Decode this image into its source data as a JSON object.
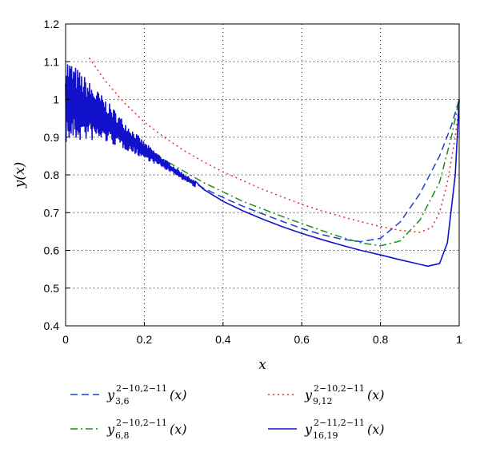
{
  "chart_data": {
    "type": "line",
    "xlabel": "x",
    "ylabel": "y(x)",
    "xlim": [
      0,
      1
    ],
    "ylim": [
      0.4,
      1.2
    ],
    "grid": true,
    "xticks": [
      "0",
      "0.2",
      "0.4",
      "0.6",
      "0.8",
      "1"
    ],
    "yticks": [
      "0.4",
      "0.5",
      "0.6",
      "0.7",
      "0.8",
      "0.9",
      "1",
      "1.1",
      "1.2"
    ],
    "legend_position": "below",
    "series": [
      {
        "name": "y_{3,6}^{2^{-10},2^{-11}}(x)",
        "legend": {
          "base": "y",
          "sub": "3,6",
          "sup": "2−10,2−11",
          "arg": "(x)"
        },
        "color": "#1f3fcc",
        "style": "dashed",
        "x": [
          0,
          0.05,
          0.1,
          0.15,
          0.2,
          0.25,
          0.3,
          0.35,
          0.4,
          0.45,
          0.5,
          0.55,
          0.6,
          0.65,
          0.7,
          0.75,
          0.8,
          0.85,
          0.9,
          0.95,
          0.98,
          1.0
        ],
        "y": [
          0.99,
          0.975,
          0.945,
          0.905,
          0.865,
          0.83,
          0.795,
          0.765,
          0.74,
          0.717,
          0.697,
          0.677,
          0.658,
          0.642,
          0.63,
          0.623,
          0.632,
          0.675,
          0.75,
          0.85,
          0.93,
          1.0
        ]
      },
      {
        "name": "y_{6,8}^{2^{-10},2^{-11}}(x)",
        "legend": {
          "base": "y",
          "sub": "6,8",
          "sup": "2−10,2−11",
          "arg": "(x)"
        },
        "color": "#1a8c1a",
        "style": "dashdot",
        "x": [
          0,
          0.05,
          0.1,
          0.15,
          0.2,
          0.25,
          0.3,
          0.35,
          0.4,
          0.45,
          0.5,
          0.55,
          0.6,
          0.65,
          0.7,
          0.75,
          0.8,
          0.85,
          0.9,
          0.95,
          0.98,
          1.0
        ],
        "y": [
          1.0,
          0.985,
          0.955,
          0.915,
          0.875,
          0.84,
          0.81,
          0.78,
          0.755,
          0.73,
          0.71,
          0.69,
          0.671,
          0.653,
          0.635,
          0.62,
          0.612,
          0.625,
          0.68,
          0.78,
          0.9,
          1.0
        ]
      },
      {
        "name": "y_{9,12}^{2^{-10},2^{-11}}(x)",
        "legend": {
          "base": "y",
          "sub": "9,12",
          "sup": "2−10,2−11",
          "arg": "(x)"
        },
        "color": "#e03030",
        "style": "dotted",
        "x": [
          0.06,
          0.1,
          0.15,
          0.2,
          0.25,
          0.3,
          0.35,
          0.4,
          0.45,
          0.5,
          0.55,
          0.6,
          0.65,
          0.7,
          0.75,
          0.8,
          0.85,
          0.9,
          0.93,
          0.95,
          0.97,
          0.99,
          1.0
        ],
        "y": [
          1.11,
          1.05,
          0.99,
          0.94,
          0.9,
          0.865,
          0.835,
          0.808,
          0.785,
          0.762,
          0.742,
          0.722,
          0.705,
          0.69,
          0.676,
          0.663,
          0.653,
          0.648,
          0.66,
          0.7,
          0.78,
          0.9,
          0.99
        ]
      },
      {
        "name": "y_{16,19}^{2^{-11},2^{-11}}(x)",
        "legend": {
          "base": "y",
          "sub": "16,19",
          "sup": "2−11,2−11",
          "arg": "(x)"
        },
        "color": "#1212cc",
        "style": "solid",
        "noisy_until": 0.33,
        "x": [
          0,
          0.05,
          0.1,
          0.15,
          0.2,
          0.25,
          0.3,
          0.35,
          0.4,
          0.45,
          0.5,
          0.55,
          0.6,
          0.65,
          0.7,
          0.75,
          0.8,
          0.85,
          0.9,
          0.92,
          0.95,
          0.97,
          0.99,
          1.0
        ],
        "y": [
          1.0,
          0.975,
          0.945,
          0.905,
          0.865,
          0.83,
          0.795,
          0.762,
          0.73,
          0.705,
          0.683,
          0.663,
          0.645,
          0.629,
          0.614,
          0.6,
          0.588,
          0.575,
          0.563,
          0.558,
          0.565,
          0.62,
          0.8,
          1.0
        ]
      }
    ]
  }
}
